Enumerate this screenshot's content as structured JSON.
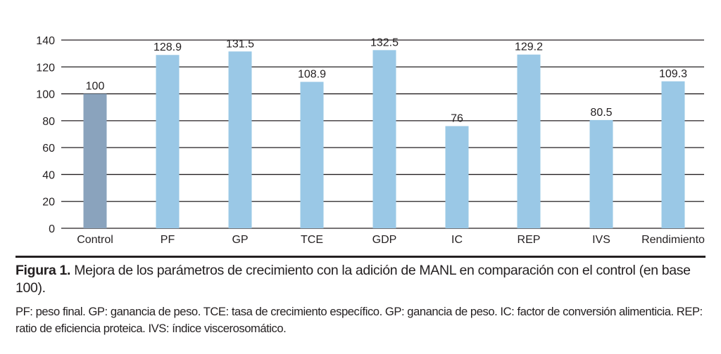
{
  "chart_data": {
    "type": "bar",
    "categories": [
      "Control",
      "PF",
      "GP",
      "TCE",
      "GDP",
      "IC",
      "REP",
      "IVS",
      "Rendimiento"
    ],
    "values": [
      100,
      128.9,
      131.5,
      108.9,
      132.5,
      76,
      129.2,
      80.5,
      109.3
    ],
    "value_labels": [
      "100",
      "128.9",
      "131.5",
      "108.9",
      "132.5",
      "76",
      "129.2",
      "80.5",
      "109.3"
    ],
    "ylim": [
      0,
      140
    ],
    "yticks": [
      0,
      20,
      40,
      60,
      80,
      100,
      120,
      140
    ],
    "grid": true,
    "colors": {
      "control_bar": "#8aa3bd",
      "bar": "#9ac8e6",
      "grid": "#231f20"
    }
  },
  "caption": {
    "figure_label": "Figura 1.",
    "text": " Mejora de los parámetros de crecimiento con la adición de MANL en comparación con el control (en base 100).",
    "notes": "PF: peso final. GP: ganancia de peso. TCE: tasa de crecimiento específico. GP: ganancia de peso. IC: factor de conversión alimenticia. REP: ratio de eficiencia proteica. IVS: índice viscerosomático."
  }
}
